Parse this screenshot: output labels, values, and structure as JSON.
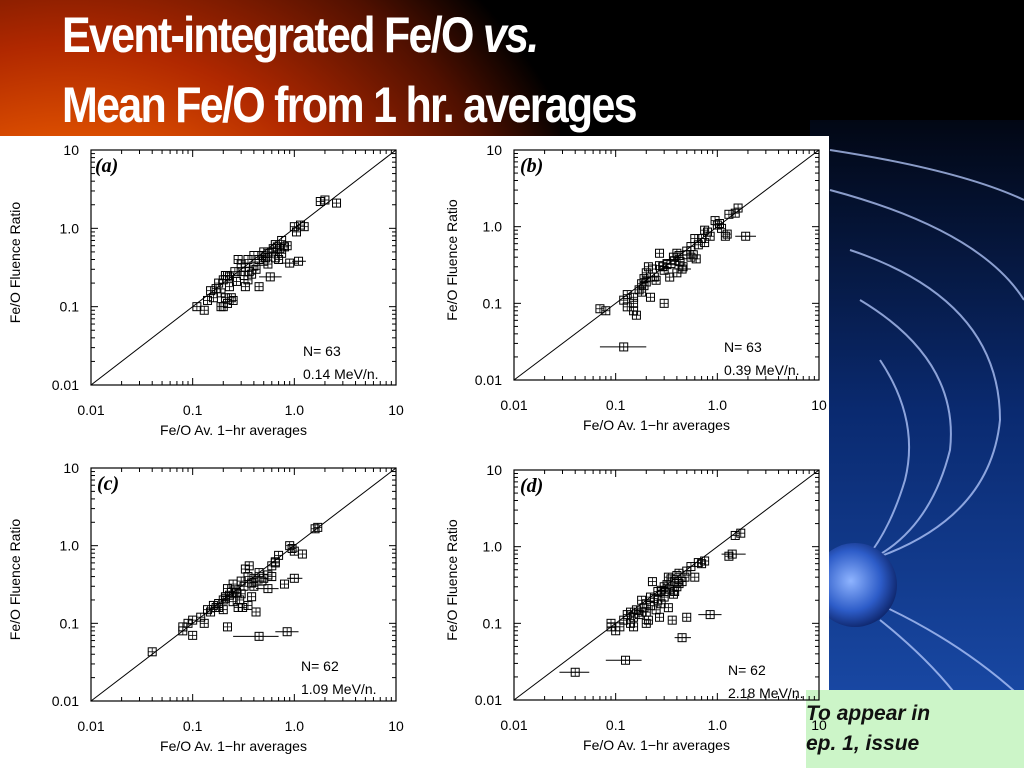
{
  "slide": {
    "title_line1_main": "Event-integrated Fe/O ",
    "title_line1_italic": "vs.",
    "title_line2": "Mean Fe/O from 1 hr. averages",
    "note_line1": "To appear in",
    "note_line2": "ep. 1, issue"
  },
  "colors": {
    "marker": "#000000",
    "axis": "#000000",
    "title": "#ffffff",
    "note_bg": "#ccf5c8"
  },
  "chart_data": [
    {
      "type": "scatter",
      "panel_label": "(a)",
      "xlabel": "Fe/O Av. 1−hr averages",
      "ylabel": "Fe/O Fluence Ratio",
      "xscale": "log",
      "yscale": "log",
      "xlim": [
        0.01,
        10
      ],
      "ylim": [
        0.01,
        10
      ],
      "xtick_labels": [
        "0.01",
        "0.1",
        "1.0",
        "10"
      ],
      "ytick_labels": [
        "0.01",
        "0.1",
        "1.0",
        "10"
      ],
      "reference_line": "y = x",
      "n_text": "N=  63",
      "energy_text": "0.14 MeV/n.",
      "points": [
        [
          0.11,
          0.1
        ],
        [
          0.13,
          0.09
        ],
        [
          0.14,
          0.12
        ],
        [
          0.15,
          0.16
        ],
        [
          0.16,
          0.13
        ],
        [
          0.17,
          0.17
        ],
        [
          0.18,
          0.2
        ],
        [
          0.19,
          0.15
        ],
        [
          0.2,
          0.22
        ],
        [
          0.2,
          0.1
        ],
        [
          0.21,
          0.25
        ],
        [
          0.21,
          0.13
        ],
        [
          0.22,
          0.11
        ],
        [
          0.22,
          0.25
        ],
        [
          0.23,
          0.18
        ],
        [
          0.23,
          0.24
        ],
        [
          0.24,
          0.13
        ],
        [
          0.25,
          0.12
        ],
        [
          0.27,
          0.21
        ],
        [
          0.3,
          0.28
        ],
        [
          0.32,
          0.25
        ],
        [
          0.33,
          0.32
        ],
        [
          0.35,
          0.22
        ],
        [
          0.35,
          0.4
        ],
        [
          0.36,
          0.28
        ],
        [
          0.38,
          0.26
        ],
        [
          0.4,
          0.33
        ],
        [
          0.42,
          0.3
        ],
        [
          0.45,
          0.4
        ],
        [
          0.48,
          0.45
        ],
        [
          0.5,
          0.38
        ],
        [
          0.52,
          0.42
        ],
        [
          0.45,
          0.18
        ],
        [
          0.55,
          0.48
        ],
        [
          0.58,
          0.24
        ],
        [
          0.6,
          0.5
        ],
        [
          0.62,
          0.55
        ],
        [
          0.65,
          0.42
        ],
        [
          0.68,
          0.58
        ],
        [
          0.72,
          0.55
        ],
        [
          0.75,
          0.48
        ],
        [
          0.8,
          0.58
        ],
        [
          0.85,
          0.6
        ],
        [
          0.9,
          0.36
        ],
        [
          1.1,
          0.38
        ],
        [
          1.0,
          1.05
        ],
        [
          1.05,
          0.9
        ],
        [
          1.15,
          1.1
        ],
        [
          1.25,
          1.05
        ],
        [
          1.8,
          2.2
        ],
        [
          2.0,
          2.3
        ],
        [
          2.6,
          2.1
        ],
        [
          0.28,
          0.4
        ],
        [
          0.3,
          0.35
        ],
        [
          0.33,
          0.18
        ],
        [
          0.4,
          0.45
        ],
        [
          0.55,
          0.35
        ],
        [
          0.65,
          0.62
        ],
        [
          0.7,
          0.4
        ],
        [
          0.75,
          0.7
        ],
        [
          0.26,
          0.28
        ],
        [
          0.19,
          0.1
        ],
        [
          0.5,
          0.5
        ]
      ],
      "error_bars": [
        {
          "x": 0.9,
          "y": 0.36,
          "x_lo": 0.75,
          "x_hi": 1.1
        },
        {
          "x": 1.1,
          "y": 0.38,
          "x_lo": 0.95,
          "x_hi": 1.3
        },
        {
          "x": 0.58,
          "y": 0.24,
          "x_lo": 0.45,
          "x_hi": 0.75
        }
      ]
    },
    {
      "type": "scatter",
      "panel_label": "(b)",
      "xlabel": "Fe/O Av. 1−hr averages",
      "ylabel": "Fe/O Fluence Ratio",
      "xscale": "log",
      "yscale": "log",
      "xlim": [
        0.01,
        10
      ],
      "ylim": [
        0.01,
        10
      ],
      "xtick_labels": [
        "0.01",
        "0.1",
        "1.0",
        "10"
      ],
      "ytick_labels": [
        "0.01",
        "0.1",
        "1.0",
        "10"
      ],
      "reference_line": "y = x",
      "n_text": "N=  63",
      "energy_text": "0.39 MeV/n.",
      "points": [
        [
          0.07,
          0.085
        ],
        [
          0.08,
          0.08
        ],
        [
          0.12,
          0.11
        ],
        [
          0.13,
          0.13
        ],
        [
          0.13,
          0.09
        ],
        [
          0.15,
          0.1
        ],
        [
          0.15,
          0.08
        ],
        [
          0.16,
          0.07
        ],
        [
          0.17,
          0.15
        ],
        [
          0.18,
          0.18
        ],
        [
          0.19,
          0.21
        ],
        [
          0.2,
          0.19
        ],
        [
          0.2,
          0.25
        ],
        [
          0.21,
          0.3
        ],
        [
          0.22,
          0.22
        ],
        [
          0.22,
          0.12
        ],
        [
          0.23,
          0.28
        ],
        [
          0.25,
          0.2
        ],
        [
          0.27,
          0.31
        ],
        [
          0.3,
          0.27
        ],
        [
          0.3,
          0.1
        ],
        [
          0.32,
          0.32
        ],
        [
          0.34,
          0.22
        ],
        [
          0.35,
          0.33
        ],
        [
          0.38,
          0.36
        ],
        [
          0.4,
          0.25
        ],
        [
          0.4,
          0.45
        ],
        [
          0.43,
          0.35
        ],
        [
          0.46,
          0.3
        ],
        [
          0.5,
          0.48
        ],
        [
          0.5,
          0.43
        ],
        [
          0.55,
          0.55
        ],
        [
          0.58,
          0.43
        ],
        [
          0.62,
          0.38
        ],
        [
          0.65,
          0.58
        ],
        [
          0.7,
          0.7
        ],
        [
          0.75,
          0.62
        ],
        [
          0.8,
          0.85
        ],
        [
          0.85,
          0.75
        ],
        [
          0.95,
          1.2
        ],
        [
          1.05,
          1.1
        ],
        [
          1.1,
          0.95
        ],
        [
          1.2,
          0.75
        ],
        [
          1.25,
          0.8
        ],
        [
          1.3,
          1.45
        ],
        [
          1.5,
          1.5
        ],
        [
          1.6,
          1.75
        ],
        [
          1.9,
          0.75
        ],
        [
          0.27,
          0.45
        ],
        [
          0.32,
          0.33
        ],
        [
          0.45,
          0.28
        ],
        [
          0.55,
          0.4
        ],
        [
          0.6,
          0.7
        ],
        [
          0.15,
          0.12
        ],
        [
          0.18,
          0.14
        ],
        [
          0.19,
          0.17
        ],
        [
          0.24,
          0.22
        ],
        [
          0.29,
          0.3
        ],
        [
          0.37,
          0.4
        ],
        [
          0.42,
          0.42
        ],
        [
          0.75,
          0.9
        ],
        [
          1.0,
          1.05
        ],
        [
          0.12,
          0.027
        ]
      ],
      "error_bars": [
        {
          "x": 0.12,
          "y": 0.027,
          "x_lo": 0.07,
          "x_hi": 0.2
        },
        {
          "x": 1.9,
          "y": 0.75,
          "x_lo": 1.5,
          "x_hi": 2.4
        },
        {
          "x": 0.45,
          "y": 0.28,
          "x_lo": 0.38,
          "x_hi": 0.55
        }
      ]
    },
    {
      "type": "scatter",
      "panel_label": "(c)",
      "xlabel": "Fe/O Av. 1−hr averages",
      "ylabel": "Fe/O Fluence Ratio",
      "xscale": "log",
      "yscale": "log",
      "xlim": [
        0.01,
        10
      ],
      "ylim": [
        0.01,
        10
      ],
      "xtick_labels": [
        "0.01",
        "0.1",
        "1.0",
        "10"
      ],
      "ytick_labels": [
        "0.01",
        "0.1",
        "1.0",
        "10"
      ],
      "reference_line": "y = x",
      "n_text": "N=  62",
      "energy_text": "1.09 MeV/n.",
      "points": [
        [
          0.04,
          0.043
        ],
        [
          0.08,
          0.08
        ],
        [
          0.08,
          0.09
        ],
        [
          0.09,
          0.1
        ],
        [
          0.1,
          0.11
        ],
        [
          0.1,
          0.07
        ],
        [
          0.12,
          0.12
        ],
        [
          0.13,
          0.1
        ],
        [
          0.14,
          0.15
        ],
        [
          0.15,
          0.14
        ],
        [
          0.16,
          0.17
        ],
        [
          0.17,
          0.16
        ],
        [
          0.18,
          0.18
        ],
        [
          0.2,
          0.2
        ],
        [
          0.2,
          0.15
        ],
        [
          0.21,
          0.22
        ],
        [
          0.22,
          0.09
        ],
        [
          0.23,
          0.23
        ],
        [
          0.25,
          0.19
        ],
        [
          0.25,
          0.32
        ],
        [
          0.27,
          0.25
        ],
        [
          0.28,
          0.16
        ],
        [
          0.3,
          0.35
        ],
        [
          0.32,
          0.3
        ],
        [
          0.33,
          0.5
        ],
        [
          0.35,
          0.4
        ],
        [
          0.36,
          0.55
        ],
        [
          0.38,
          0.33
        ],
        [
          0.4,
          0.38
        ],
        [
          0.42,
          0.14
        ],
        [
          0.45,
          0.45
        ],
        [
          0.48,
          0.35
        ],
        [
          0.5,
          0.38
        ],
        [
          0.55,
          0.28
        ],
        [
          0.6,
          0.55
        ],
        [
          0.65,
          0.6
        ],
        [
          0.7,
          0.75
        ],
        [
          0.9,
          1.0
        ],
        [
          0.95,
          0.92
        ],
        [
          1.0,
          0.85
        ],
        [
          1.2,
          0.78
        ],
        [
          1.0,
          0.38
        ],
        [
          1.6,
          1.65
        ],
        [
          1.7,
          1.72
        ],
        [
          0.45,
          0.068
        ],
        [
          0.85,
          0.078
        ],
        [
          0.22,
          0.28
        ],
        [
          0.3,
          0.24
        ],
        [
          0.35,
          0.17
        ],
        [
          0.38,
          0.22
        ],
        [
          0.4,
          0.3
        ],
        [
          0.42,
          0.35
        ],
        [
          0.55,
          0.42
        ],
        [
          0.6,
          0.4
        ],
        [
          0.65,
          0.62
        ],
        [
          0.8,
          0.32
        ],
        [
          0.18,
          0.16
        ],
        [
          0.26,
          0.27
        ],
        [
          0.29,
          0.2
        ],
        [
          0.31,
          0.16
        ],
        [
          0.24,
          0.25
        ],
        [
          0.21,
          0.21
        ]
      ],
      "error_bars": [
        {
          "x": 0.45,
          "y": 0.068,
          "x_lo": 0.25,
          "x_hi": 0.7
        },
        {
          "x": 0.85,
          "y": 0.078,
          "x_lo": 0.65,
          "x_hi": 1.1
        },
        {
          "x": 1.0,
          "y": 0.38,
          "x_lo": 0.85,
          "x_hi": 1.2
        },
        {
          "x": 0.55,
          "y": 0.28,
          "x_lo": 0.42,
          "x_hi": 0.7
        }
      ]
    },
    {
      "type": "scatter",
      "panel_label": "(d)",
      "xlabel": "Fe/O Av. 1−hr averages",
      "ylabel": "Fe/O Fluence Ratio",
      "xscale": "log",
      "yscale": "log",
      "xlim": [
        0.01,
        10
      ],
      "ylim": [
        0.01,
        10
      ],
      "xtick_labels": [
        "0.01",
        "0.1",
        "1.0",
        "10"
      ],
      "ytick_labels": [
        "0.01",
        "0.1",
        "1.0",
        "10"
      ],
      "reference_line": "y = x",
      "n_text": "N=  62",
      "energy_text": "2.18 MeV/n.",
      "points": [
        [
          0.04,
          0.023
        ],
        [
          0.125,
          0.033
        ],
        [
          0.09,
          0.09
        ],
        [
          0.09,
          0.1
        ],
        [
          0.1,
          0.08
        ],
        [
          0.11,
          0.09
        ],
        [
          0.12,
          0.11
        ],
        [
          0.13,
          0.13
        ],
        [
          0.14,
          0.14
        ],
        [
          0.14,
          0.1
        ],
        [
          0.15,
          0.12
        ],
        [
          0.15,
          0.09
        ],
        [
          0.16,
          0.15
        ],
        [
          0.17,
          0.13
        ],
        [
          0.18,
          0.2
        ],
        [
          0.19,
          0.16
        ],
        [
          0.2,
          0.18
        ],
        [
          0.2,
          0.14
        ],
        [
          0.21,
          0.11
        ],
        [
          0.22,
          0.22
        ],
        [
          0.23,
          0.35
        ],
        [
          0.24,
          0.21
        ],
        [
          0.25,
          0.15
        ],
        [
          0.26,
          0.26
        ],
        [
          0.27,
          0.12
        ],
        [
          0.28,
          0.27
        ],
        [
          0.3,
          0.3
        ],
        [
          0.3,
          0.22
        ],
        [
          0.32,
          0.32
        ],
        [
          0.33,
          0.16
        ],
        [
          0.34,
          0.28
        ],
        [
          0.35,
          0.38
        ],
        [
          0.36,
          0.11
        ],
        [
          0.37,
          0.24
        ],
        [
          0.38,
          0.35
        ],
        [
          0.4,
          0.3
        ],
        [
          0.4,
          0.42
        ],
        [
          0.42,
          0.33
        ],
        [
          0.45,
          0.35
        ],
        [
          0.45,
          0.065
        ],
        [
          0.5,
          0.48
        ],
        [
          0.5,
          0.12
        ],
        [
          0.55,
          0.55
        ],
        [
          0.6,
          0.4
        ],
        [
          0.65,
          0.62
        ],
        [
          0.7,
          0.6
        ],
        [
          0.75,
          0.65
        ],
        [
          0.85,
          0.13
        ],
        [
          1.3,
          0.75
        ],
        [
          1.4,
          0.8
        ],
        [
          1.5,
          1.4
        ],
        [
          1.7,
          1.5
        ],
        [
          0.2,
          0.1
        ],
        [
          0.22,
          0.17
        ],
        [
          0.28,
          0.18
        ],
        [
          0.3,
          0.26
        ],
        [
          0.38,
          0.26
        ],
        [
          0.33,
          0.4
        ],
        [
          0.42,
          0.45
        ],
        [
          0.48,
          0.4
        ],
        [
          0.18,
          0.14
        ],
        [
          0.26,
          0.2
        ]
      ],
      "error_bars": [
        {
          "x": 0.04,
          "y": 0.023,
          "x_lo": 0.028,
          "x_hi": 0.055
        },
        {
          "x": 0.125,
          "y": 0.033,
          "x_lo": 0.08,
          "x_hi": 0.18
        },
        {
          "x": 0.85,
          "y": 0.13,
          "x_lo": 0.65,
          "x_hi": 1.1
        },
        {
          "x": 1.4,
          "y": 0.8,
          "x_lo": 1.1,
          "x_hi": 1.9
        },
        {
          "x": 0.45,
          "y": 0.065,
          "x_lo": 0.38,
          "x_hi": 0.55
        }
      ]
    }
  ]
}
